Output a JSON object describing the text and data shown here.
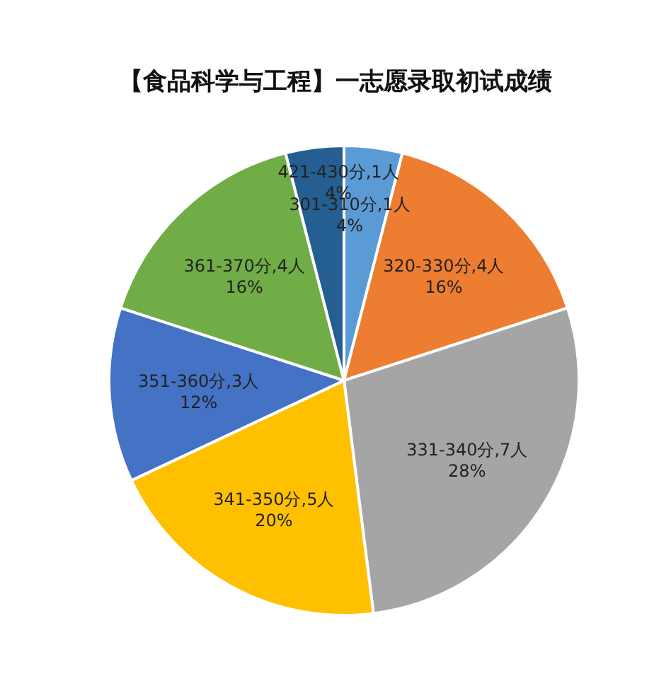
{
  "chart_data": {
    "type": "pie",
    "title": "【食品科学与工程】一志愿录取初试成绩",
    "categories": [
      "301-310分,1人",
      "320-330分,4人",
      "331-340分,7人",
      "341-350分,5人",
      "351-360分,3人",
      "361-370分,4人",
      "421-430分,1人"
    ],
    "values": [
      4,
      16,
      28,
      20,
      12,
      16,
      4
    ],
    "value_labels": [
      "4%",
      "16%",
      "28%",
      "20%",
      "12%",
      "16%",
      "4%"
    ],
    "colors": [
      "#5b9bd5",
      "#ed7d31",
      "#a5a5a5",
      "#ffc000",
      "#4472c4",
      "#70ad47",
      "#255e91"
    ],
    "legend": false
  }
}
